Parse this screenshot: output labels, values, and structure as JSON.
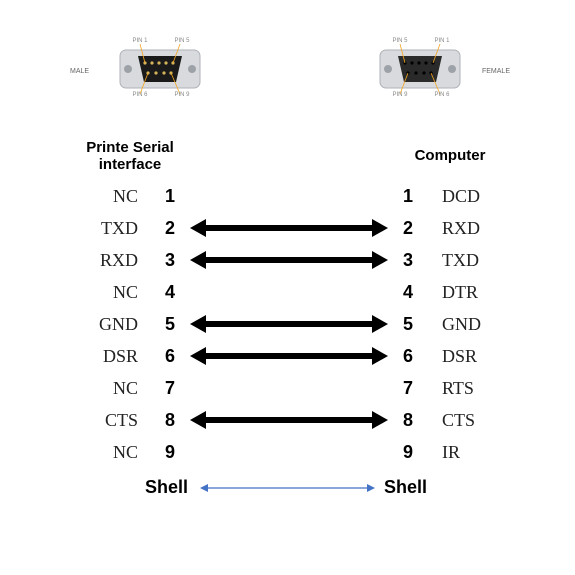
{
  "diagram": {
    "type": "pinout-wiring-diagram",
    "background_color": "#ffffff",
    "text_color": "#222222",
    "bold_number_color": "#000000",
    "connectors": {
      "left": {
        "gender": "MALE",
        "side_label": "MALE",
        "pin_labels": {
          "tl": "PIN 1",
          "tr": "PIN 5",
          "bl": "PIN 6",
          "br": "PIN 9"
        },
        "metal_color": "#d8dadd",
        "body_color": "#1a1a1a",
        "pin_color": "#d4b35a"
      },
      "right": {
        "gender": "FEMALE",
        "side_label": "FEMALE",
        "pin_labels": {
          "tl": "PIN 5",
          "tr": "PIN 1",
          "bl": "PIN 9",
          "br": "PIN 6"
        },
        "metal_color": "#d8dadd",
        "body_color": "#1a1a1a",
        "hole_color": "#000000"
      }
    },
    "headers": {
      "left": "Printe Serial interface",
      "right": "Computer"
    },
    "signal_font": {
      "family": "Times New Roman",
      "size_pt": 18,
      "weight": "normal"
    },
    "pin_font": {
      "family": "Arial",
      "size_pt": 18,
      "weight": "bold"
    },
    "header_font": {
      "family": "Arial",
      "size_pt": 15,
      "weight": "bold"
    },
    "arrow": {
      "color": "#000000",
      "stroke_width": 6,
      "head_length": 16,
      "head_width": 18,
      "style": "double-ended"
    },
    "shell_arrow": {
      "color": "#4472c4",
      "stroke_width": 1.2,
      "head_length": 8,
      "head_width": 8,
      "style": "double-ended"
    },
    "rows": [
      {
        "left_signal": "NC",
        "left_pin": "1",
        "right_pin": "1",
        "right_signal": "DCD",
        "connected": false
      },
      {
        "left_signal": "TXD",
        "left_pin": "2",
        "right_pin": "2",
        "right_signal": "RXD",
        "connected": true
      },
      {
        "left_signal": "RXD",
        "left_pin": "3",
        "right_pin": "3",
        "right_signal": "TXD",
        "connected": true
      },
      {
        "left_signal": "NC",
        "left_pin": "4",
        "right_pin": "4",
        "right_signal": "DTR",
        "connected": false
      },
      {
        "left_signal": "GND",
        "left_pin": "5",
        "right_pin": "5",
        "right_signal": "GND",
        "connected": true
      },
      {
        "left_signal": "DSR",
        "left_pin": "6",
        "right_pin": "6",
        "right_signal": "DSR",
        "connected": true
      },
      {
        "left_signal": "NC",
        "left_pin": "7",
        "right_pin": "7",
        "right_signal": "RTS",
        "connected": false
      },
      {
        "left_signal": "CTS",
        "left_pin": "8",
        "right_pin": "8",
        "right_signal": "CTS",
        "connected": true
      },
      {
        "left_signal": "NC",
        "left_pin": "9",
        "right_pin": "9",
        "right_signal": "IR",
        "connected": false
      }
    ],
    "shell": {
      "left": "Shell",
      "right": "Shell"
    }
  }
}
